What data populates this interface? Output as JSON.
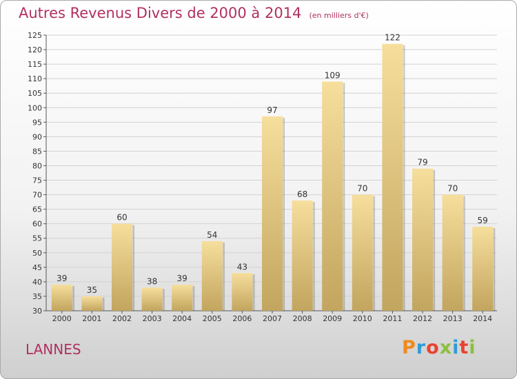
{
  "header": {
    "title": "Autres Revenus Divers de 2000 à 2014",
    "unit": "(en milliers d'€)"
  },
  "footer": {
    "commune": "LANNES",
    "logo_text": "Proxiti",
    "logo_colors": [
      "#f08a1c",
      "#2f9bd6",
      "#e8432f",
      "#8cbf3f",
      "#2f9bd6",
      "#e8432f",
      "#8cbf3f"
    ]
  },
  "colors": {
    "accent": "#b03060",
    "bar_top": "#f6de9c",
    "bar_bottom": "#c2a55e"
  },
  "chart_data": {
    "type": "bar",
    "categories": [
      "2000",
      "2001",
      "2002",
      "2003",
      "2004",
      "2005",
      "2006",
      "2007",
      "2008",
      "2009",
      "2010",
      "2011",
      "2012",
      "2013",
      "2014"
    ],
    "values": [
      39,
      35,
      60,
      38,
      39,
      54,
      43,
      97,
      68,
      109,
      70,
      122,
      79,
      70,
      59
    ],
    "ylim": [
      30,
      125
    ],
    "yticks": [
      30,
      35,
      40,
      45,
      50,
      55,
      60,
      65,
      70,
      75,
      80,
      85,
      90,
      95,
      100,
      105,
      110,
      115,
      120,
      125
    ],
    "grid": true
  }
}
